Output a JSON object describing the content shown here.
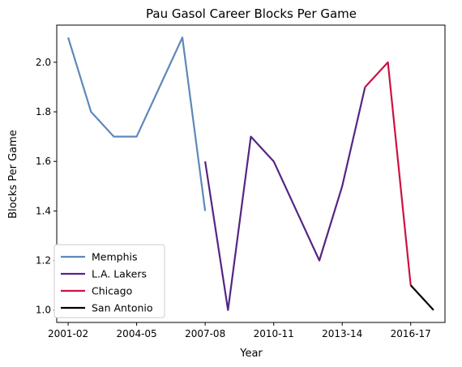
{
  "chart_data": {
    "type": "line",
    "title": "Pau Gasol Career Blocks Per Game",
    "xlabel": "Year",
    "ylabel": "Blocks Per Game",
    "ylim": [
      0.95,
      2.15
    ],
    "grid": false,
    "legend_position": "lower-left",
    "x_ticks": [
      "2001-02",
      "2004-05",
      "2007-08",
      "2010-11",
      "2013-14",
      "2016-17"
    ],
    "y_ticks": [
      "1.0",
      "1.2",
      "1.4",
      "1.6",
      "1.8",
      "2.0"
    ],
    "series": [
      {
        "name": "Memphis",
        "color": "#5d88b9",
        "x": [
          "2001-02",
          "2002-03",
          "2003-04",
          "2004-05",
          "2005-06",
          "2006-07",
          "2007-08"
        ],
        "values": [
          2.1,
          1.8,
          1.7,
          1.7,
          1.9,
          2.1,
          1.4
        ]
      },
      {
        "name": "L.A. Lakers",
        "color": "#552583",
        "x": [
          "2007-08",
          "2008-09",
          "2009-10",
          "2010-11",
          "2011-12",
          "2012-13",
          "2013-14",
          "2014-15"
        ],
        "values": [
          1.6,
          1.0,
          1.7,
          1.6,
          1.4,
          1.2,
          1.5,
          1.9
        ]
      },
      {
        "name": "Chicago",
        "color": "#ce1141",
        "x": [
          "2014-15",
          "2015-16",
          "2016-17"
        ],
        "values": [
          1.9,
          2.0,
          1.1
        ]
      },
      {
        "name": "San Antonio",
        "color": "#000000",
        "x": [
          "2016-17",
          "2017-18"
        ],
        "values": [
          1.1,
          1.0
        ]
      }
    ]
  }
}
